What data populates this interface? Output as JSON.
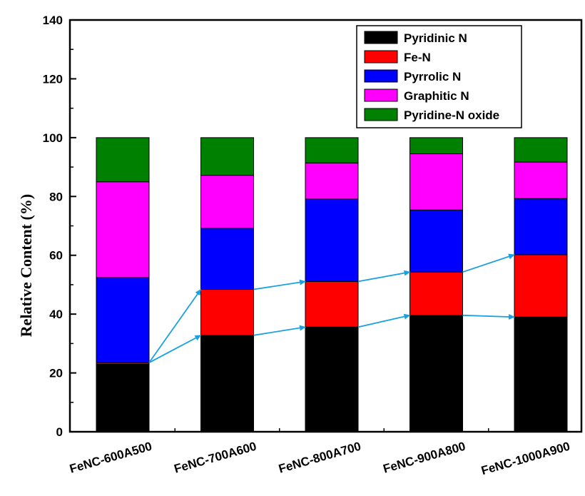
{
  "chart_data": {
    "type": "bar",
    "stacked": true,
    "title": "",
    "xlabel": "",
    "ylabel": "Relative Content (%)",
    "ylim": [
      0,
      140
    ],
    "yticks": [
      0,
      20,
      40,
      60,
      80,
      100,
      120,
      140
    ],
    "grid": false,
    "legend_position": "top-right",
    "categories": [
      "FeNC-600A500",
      "FeNC-700A600",
      "FeNC-800A700",
      "FeNC-900A800",
      "FeNC-1000A900"
    ],
    "series": [
      {
        "name": "Pyridinic N",
        "color": "#000000",
        "values": [
          23.0,
          32.8,
          35.6,
          39.6,
          39.0
        ]
      },
      {
        "name": "Fe-N",
        "color": "#ff0000",
        "values": [
          0.5,
          15.6,
          15.5,
          14.7,
          21.2
        ]
      },
      {
        "name": "Pyrrolic N",
        "color": "#0000ff",
        "values": [
          28.9,
          20.8,
          28.0,
          21.1,
          19.1
        ]
      },
      {
        "name": "Graphitic N",
        "color": "#ff00ff",
        "values": [
          32.6,
          18.0,
          12.3,
          19.1,
          12.4
        ]
      },
      {
        "name": "Pyridine-N oxide",
        "color": "#008000",
        "values": [
          15.0,
          12.8,
          8.6,
          5.5,
          8.3
        ]
      }
    ],
    "annotations": {
      "arrow_color": "#1ba1e2",
      "arrows": [
        {
          "from": [
            0,
            23.5
          ],
          "to": [
            1,
            48.4
          ]
        },
        {
          "from": [
            0,
            23.5
          ],
          "to": [
            1,
            32.8
          ]
        },
        {
          "from": [
            1,
            48.4
          ],
          "to": [
            2,
            51.1
          ]
        },
        {
          "from": [
            1,
            32.8
          ],
          "to": [
            2,
            35.6
          ]
        },
        {
          "from": [
            2,
            51.1
          ],
          "to": [
            3,
            54.3
          ]
        },
        {
          "from": [
            2,
            35.6
          ],
          "to": [
            3,
            39.6
          ]
        },
        {
          "from": [
            3,
            54.3
          ],
          "to": [
            4,
            60.2
          ]
        },
        {
          "from": [
            3,
            39.6
          ],
          "to": [
            4,
            39.0
          ]
        }
      ]
    }
  }
}
